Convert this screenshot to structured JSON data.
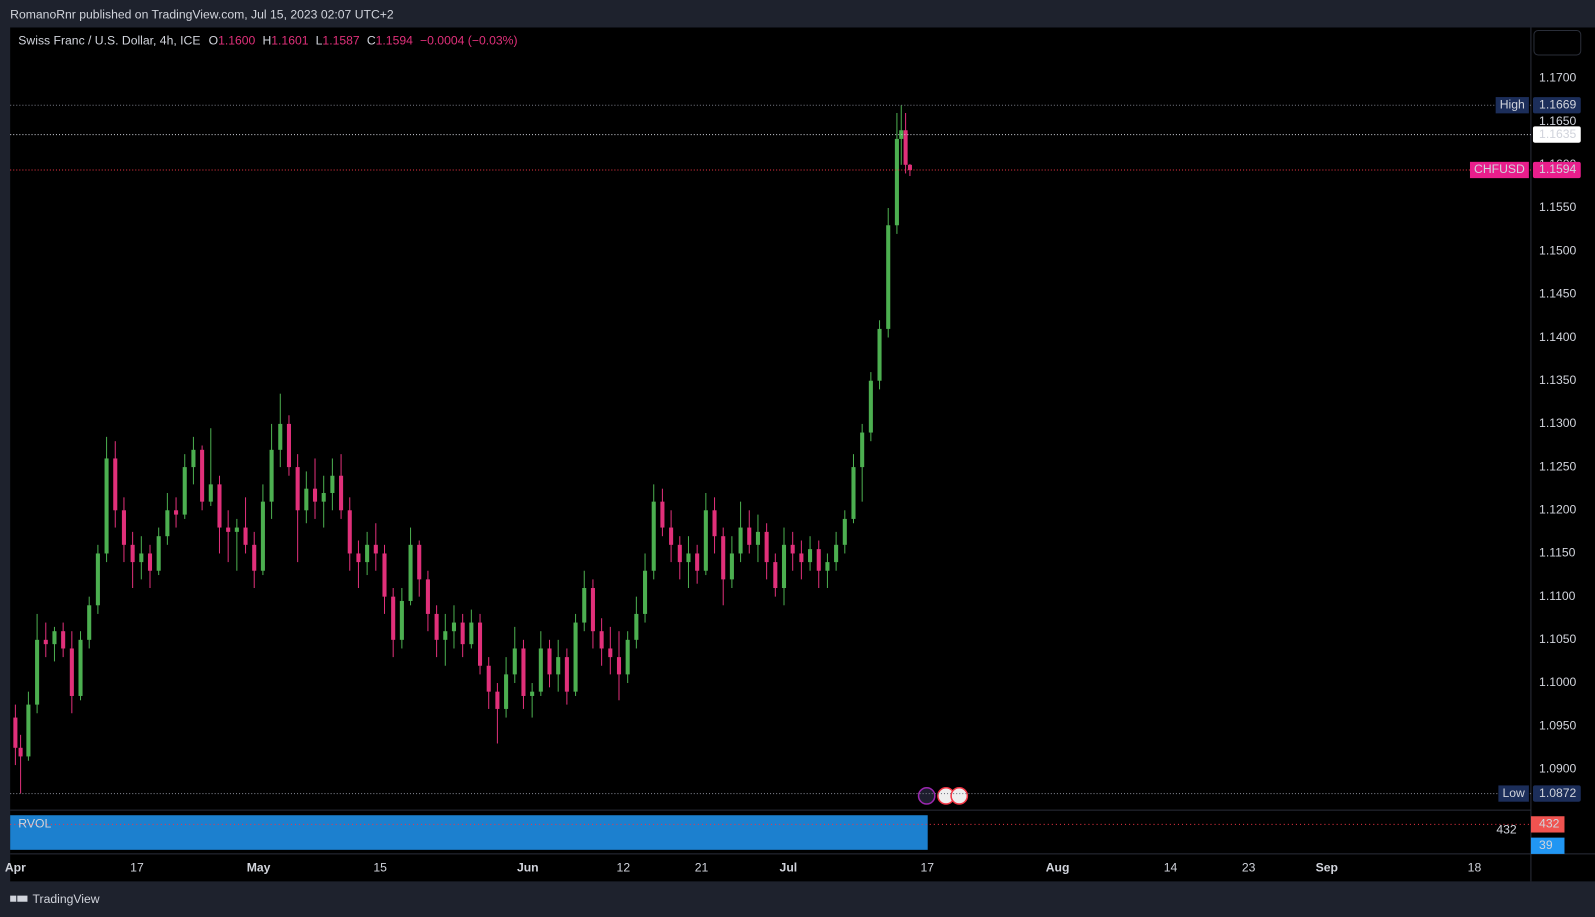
{
  "header": {
    "publisher": "RomanoRnr published on TradingView.com, Jul 15, 2023 02:07 UTC+2",
    "brand": "TradingView"
  },
  "chart_data": {
    "type": "candlestick",
    "title": "Swiss Franc / U.S. Dollar, 4h, ICE",
    "ohlc_legend": [
      {
        "key": "O",
        "value": "1.1600"
      },
      {
        "key": "H",
        "value": "1.1601"
      },
      {
        "key": "L",
        "value": "1.1587"
      },
      {
        "key": "C",
        "value": "1.1594"
      }
    ],
    "change": "−0.0004 (−0.03%)",
    "up_color": "#4caf50",
    "down_color": "#e0307a",
    "x": [
      3,
      3.6,
      4.5,
      5.5,
      6.5,
      7.5,
      8.5,
      9.5,
      10.5,
      11.5,
      12.5,
      13.5,
      14.5,
      15.5,
      16.5,
      17.5,
      18.5,
      19.5,
      20.5,
      21.5,
      22.5,
      23.5,
      24.5,
      25.5,
      26.5,
      27.5,
      28.5,
      29.5,
      30.5,
      31.5,
      32.5,
      33.5,
      34.5,
      35.5,
      36.5,
      37.5,
      38.5,
      39.5,
      40.5,
      41.5,
      42.5,
      43.5,
      44.5,
      45.5,
      46.5,
      47.5,
      48.5,
      49.5,
      50.5,
      51.5,
      52.5,
      53.5,
      54.5,
      55.5,
      56.5,
      57.5,
      58.5,
      59.5,
      60.5,
      61.5,
      62.5,
      63.5,
      64.5,
      65.5,
      66.5,
      67.5,
      68.5,
      69.5,
      70.5,
      71.5,
      72.5,
      73.5,
      74.5,
      75.5,
      76.5,
      77.5,
      78.5,
      79.5,
      80.5,
      81.5,
      82.5,
      83.5,
      84.5,
      85.5,
      86.5,
      87.5,
      88.5,
      89.5,
      90.5,
      91.5,
      92.5,
      93.5,
      94.5,
      95.5,
      96.5,
      97.5,
      98.5,
      99.5,
      100.5,
      101.5,
      102.5,
      103.5,
      104.5,
      105,
      105.5,
      106
    ],
    "open": [
      1.096,
      1.0925,
      1.0915,
      1.0975,
      1.105,
      1.1045,
      1.106,
      1.104,
      1.0985,
      1.105,
      1.109,
      1.115,
      1.126,
      1.12,
      1.116,
      1.114,
      1.115,
      1.113,
      1.117,
      1.12,
      1.1195,
      1.125,
      1.127,
      1.121,
      1.123,
      1.118,
      1.1175,
      1.118,
      1.116,
      1.113,
      1.121,
      1.127,
      1.13,
      1.125,
      1.12,
      1.1225,
      1.121,
      1.122,
      1.124,
      1.12,
      1.115,
      1.114,
      1.116,
      1.115,
      1.11,
      1.105,
      1.1095,
      1.116,
      1.112,
      1.108,
      1.105,
      1.106,
      1.107,
      1.1045,
      1.107,
      1.102,
      1.099,
      1.097,
      1.101,
      1.104,
      1.0985,
      1.099,
      1.104,
      1.101,
      1.103,
      1.099,
      1.107,
      1.111,
      1.106,
      1.104,
      1.103,
      1.101,
      1.105,
      1.108,
      1.113,
      1.121,
      1.118,
      1.116,
      1.114,
      1.115,
      1.113,
      1.12,
      1.117,
      1.112,
      1.115,
      1.118,
      1.116,
      1.1175,
      1.114,
      1.111,
      1.116,
      1.115,
      1.114,
      1.1155,
      1.113,
      1.114,
      1.116,
      1.119,
      1.125,
      1.129,
      1.135,
      1.141,
      1.153,
      1.163,
      1.164,
      1.16
    ],
    "high": [
      1.0975,
      1.094,
      1.099,
      1.108,
      1.107,
      1.1065,
      1.107,
      1.106,
      1.106,
      1.11,
      1.116,
      1.1285,
      1.128,
      1.1215,
      1.1175,
      1.117,
      1.116,
      1.118,
      1.122,
      1.1215,
      1.1265,
      1.1285,
      1.1275,
      1.1295,
      1.124,
      1.12,
      1.119,
      1.1215,
      1.1175,
      1.123,
      1.13,
      1.1335,
      1.131,
      1.1265,
      1.1245,
      1.126,
      1.124,
      1.126,
      1.1265,
      1.1215,
      1.1165,
      1.1175,
      1.1185,
      1.116,
      1.111,
      1.111,
      1.118,
      1.1165,
      1.113,
      1.109,
      1.108,
      1.109,
      1.108,
      1.1085,
      1.108,
      1.103,
      1.1,
      1.103,
      1.1065,
      1.105,
      1.1,
      1.106,
      1.105,
      1.105,
      1.104,
      1.108,
      1.113,
      1.112,
      1.1075,
      1.1065,
      1.106,
      1.106,
      1.11,
      1.115,
      1.123,
      1.1225,
      1.12,
      1.117,
      1.117,
      1.116,
      1.122,
      1.1215,
      1.118,
      1.117,
      1.121,
      1.12,
      1.1195,
      1.1185,
      1.115,
      1.118,
      1.1175,
      1.1165,
      1.117,
      1.1165,
      1.115,
      1.1175,
      1.12,
      1.1265,
      1.13,
      1.136,
      1.142,
      1.155,
      1.166,
      1.1669,
      1.166,
      1.1601
    ],
    "low": [
      1.0905,
      1.0872,
      1.091,
      1.0965,
      1.103,
      1.1025,
      1.103,
      1.0965,
      1.098,
      1.104,
      1.108,
      1.114,
      1.118,
      1.114,
      1.111,
      1.112,
      1.111,
      1.1125,
      1.116,
      1.118,
      1.119,
      1.123,
      1.12,
      1.1205,
      1.115,
      1.114,
      1.113,
      1.115,
      1.111,
      1.1125,
      1.119,
      1.125,
      1.124,
      1.114,
      1.1185,
      1.119,
      1.118,
      1.12,
      1.119,
      1.113,
      1.111,
      1.1125,
      1.113,
      1.108,
      1.103,
      1.104,
      1.109,
      1.11,
      1.106,
      1.103,
      1.102,
      1.104,
      1.103,
      1.104,
      1.101,
      1.097,
      1.093,
      1.096,
      1.1,
      1.097,
      1.096,
      1.0985,
      1.0995,
      1.099,
      1.0975,
      1.0985,
      1.106,
      1.104,
      1.102,
      1.101,
      1.098,
      1.1,
      1.104,
      1.107,
      1.112,
      1.117,
      1.114,
      1.112,
      1.111,
      1.1115,
      1.1125,
      1.115,
      1.109,
      1.111,
      1.114,
      1.115,
      1.114,
      1.112,
      1.11,
      1.109,
      1.113,
      1.112,
      1.113,
      1.111,
      1.111,
      1.113,
      1.115,
      1.1185,
      1.121,
      1.128,
      1.134,
      1.14,
      1.152,
      1.16,
      1.159,
      1.1587
    ],
    "close": [
      1.0925,
      1.0915,
      1.0975,
      1.105,
      1.1045,
      1.106,
      1.104,
      1.0985,
      1.105,
      1.109,
      1.115,
      1.126,
      1.12,
      1.116,
      1.114,
      1.115,
      1.113,
      1.117,
      1.12,
      1.1195,
      1.125,
      1.127,
      1.121,
      1.123,
      1.118,
      1.1175,
      1.118,
      1.116,
      1.113,
      1.121,
      1.127,
      1.13,
      1.125,
      1.12,
      1.1225,
      1.121,
      1.122,
      1.124,
      1.12,
      1.115,
      1.114,
      1.116,
      1.115,
      1.11,
      1.105,
      1.1095,
      1.116,
      1.112,
      1.108,
      1.105,
      1.106,
      1.107,
      1.1045,
      1.107,
      1.102,
      1.099,
      1.097,
      1.101,
      1.104,
      1.0985,
      1.099,
      1.104,
      1.101,
      1.103,
      1.099,
      1.107,
      1.111,
      1.106,
      1.104,
      1.103,
      1.101,
      1.105,
      1.108,
      1.113,
      1.121,
      1.118,
      1.116,
      1.114,
      1.115,
      1.113,
      1.12,
      1.117,
      1.112,
      1.115,
      1.118,
      1.116,
      1.1175,
      1.114,
      1.111,
      1.116,
      1.115,
      1.114,
      1.1155,
      1.113,
      1.114,
      1.116,
      1.119,
      1.125,
      1.129,
      1.135,
      1.141,
      1.153,
      1.163,
      1.164,
      1.16,
      1.1594
    ],
    "xlim": [
      2.4,
      177.5
    ],
    "xticks": [
      {
        "value": 3,
        "label": "Apr"
      },
      17,
      {
        "value": 31,
        "label": "May"
      },
      {
        "value": 45,
        "label": "15"
      },
      {
        "value": 62,
        "label": "Jun"
      },
      {
        "value": 73,
        "label": "12"
      },
      {
        "value": 82,
        "label": "21"
      },
      {
        "value": 92,
        "label": "Jul"
      },
      {
        "value": 108,
        "label": "17"
      },
      {
        "value": 123,
        "label": "Aug"
      },
      {
        "value": 136,
        "label": "14"
      },
      {
        "value": 145,
        "label": "23"
      },
      {
        "value": 154,
        "label": "Sep"
      },
      {
        "value": 171,
        "label": "18"
      }
    ],
    "ylim": [
      1.0854,
      1.1759
    ],
    "yticks": [
      {
        "value": 1.09,
        "label": "1.0900"
      },
      {
        "value": 1.095,
        "label": "1.0950"
      },
      {
        "value": 1.1,
        "label": "1.1000"
      },
      {
        "value": 1.105,
        "label": "1.1050"
      },
      {
        "value": 1.11,
        "label": "1.1100"
      },
      {
        "value": 1.115,
        "label": "1.1150"
      },
      {
        "value": 1.12,
        "label": "1.1200"
      },
      {
        "value": 1.125,
        "label": "1.1250"
      },
      {
        "value": 1.13,
        "label": "1.1300"
      },
      {
        "value": 1.135,
        "label": "1.1350"
      },
      {
        "value": 1.14,
        "label": "1.1400"
      },
      {
        "value": 1.145,
        "label": "1.1450"
      },
      {
        "value": 1.15,
        "label": "1.1500"
      },
      {
        "value": 1.155,
        "label": "1.1550"
      },
      {
        "value": 1.16,
        "label": "1.1600"
      },
      {
        "value": 1.165,
        "label": "1.1650"
      },
      {
        "value": 1.17,
        "label": "1.1700"
      }
    ],
    "price_lines": [
      {
        "label": "High",
        "value": 1.1669,
        "color": "#1c2e5a",
        "line_color": "#787b86",
        "text_color": "#d1d4dc"
      },
      {
        "value": 1.1635,
        "color": "#ffffff",
        "line_color": "#d1d4dc",
        "text_color": "#000000"
      },
      {
        "label": "CHFUSD",
        "value": 1.1594,
        "color": "#e91e8c",
        "line_color": "#f23645",
        "text_color": "#ffffff"
      },
      {
        "label": "Low",
        "value": 1.0872,
        "color": "#1c2e5a",
        "line_color": "#787b86",
        "text_color": "#d1d4dc"
      }
    ],
    "rvol": {
      "title": "RVOL",
      "labels": [
        {
          "value": 432,
          "color": "#f05350"
        },
        {
          "value": 39,
          "color": "#2196f3"
        }
      ]
    }
  }
}
